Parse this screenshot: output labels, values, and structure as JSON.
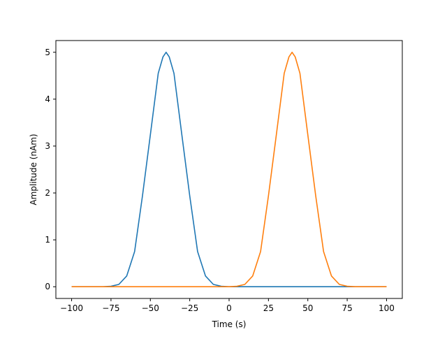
{
  "chart_data": {
    "type": "line",
    "title": "",
    "xlabel": "Time (s)",
    "ylabel": "Amplitude (nAm)",
    "xlim": [
      -110,
      110
    ],
    "ylim": [
      -0.25,
      5.25
    ],
    "xticks": [
      -100,
      -75,
      -50,
      -25,
      0,
      25,
      50,
      75,
      100
    ],
    "xtick_labels": [
      "−100",
      "−75",
      "−50",
      "−25",
      "0",
      "25",
      "50",
      "75",
      "100"
    ],
    "yticks": [
      0,
      1,
      2,
      3,
      4,
      5
    ],
    "ytick_labels": [
      "0",
      "1",
      "2",
      "3",
      "4",
      "5"
    ],
    "grid": false,
    "legend": "none",
    "series": [
      {
        "color": "#1f77b4",
        "x": [
          -100,
          -95,
          -90,
          -85,
          -80,
          -75,
          -70,
          -65,
          -60,
          -55,
          -50,
          -45,
          -42,
          -40,
          -38,
          -35,
          -30,
          -25,
          -20,
          -15,
          -10,
          -5,
          0,
          5,
          10,
          20,
          40,
          60,
          80,
          100
        ],
        "y": [
          0,
          0,
          0,
          0,
          0,
          0.01,
          0.05,
          0.23,
          0.75,
          1.94,
          3.24,
          4.55,
          4.9,
          5.0,
          4.9,
          4.55,
          3.24,
          1.94,
          0.75,
          0.23,
          0.05,
          0.01,
          0,
          0,
          0,
          0,
          0,
          0,
          0,
          0
        ]
      },
      {
        "color": "#ff7f0e",
        "x": [
          -100,
          -80,
          -60,
          -40,
          -20,
          -10,
          -5,
          0,
          5,
          10,
          15,
          20,
          25,
          30,
          35,
          38,
          40,
          42,
          45,
          50,
          55,
          60,
          65,
          70,
          75,
          80,
          85,
          90,
          95,
          100
        ],
        "y": [
          0,
          0,
          0,
          0,
          0,
          0,
          0,
          0,
          0.01,
          0.05,
          0.23,
          0.75,
          1.94,
          3.24,
          4.55,
          4.9,
          5.0,
          4.9,
          4.55,
          3.24,
          1.94,
          0.75,
          0.23,
          0.05,
          0.01,
          0,
          0,
          0,
          0,
          0
        ]
      }
    ]
  }
}
